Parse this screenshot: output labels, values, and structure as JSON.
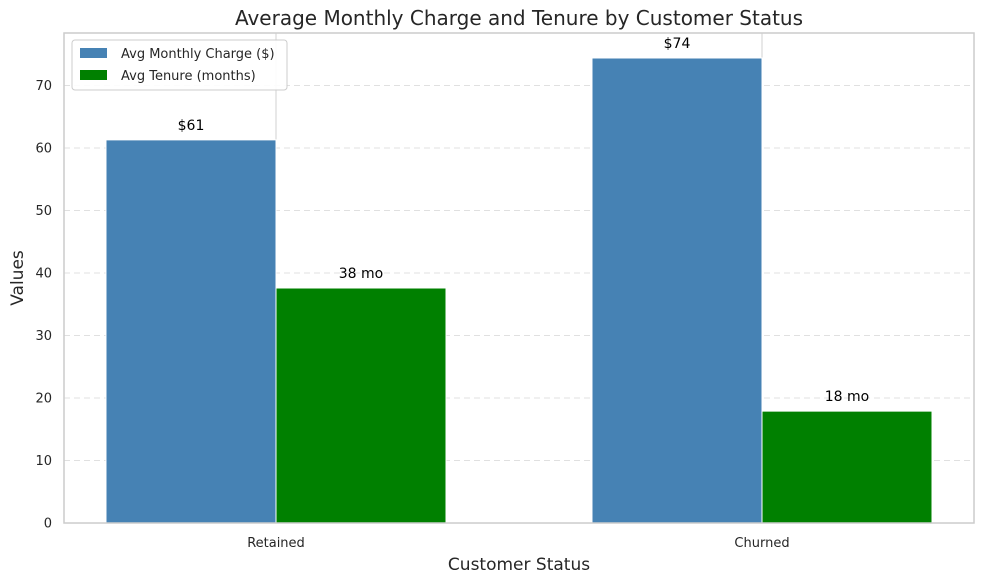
{
  "chart_data": {
    "type": "bar",
    "title": "Average Monthly Charge and Tenure by Customer Status",
    "xlabel": "Customer Status",
    "ylabel": "Values",
    "categories": [
      "Retained",
      "Churned"
    ],
    "ylim": [
      0,
      78.4
    ],
    "yticks": [
      0,
      10,
      20,
      30,
      40,
      50,
      60,
      70
    ],
    "grid": "y-dashed",
    "legend_position": "top-left",
    "series": [
      {
        "name": "Avg Monthly Charge ($)",
        "color": "#4682b4",
        "values": [
          61.3,
          74.4
        ],
        "labels": [
          "$61",
          "$74"
        ]
      },
      {
        "name": "Avg Tenure (months)",
        "color": "#008000",
        "values": [
          37.6,
          17.9
        ],
        "labels": [
          "38 mo",
          "18 mo"
        ]
      }
    ]
  }
}
